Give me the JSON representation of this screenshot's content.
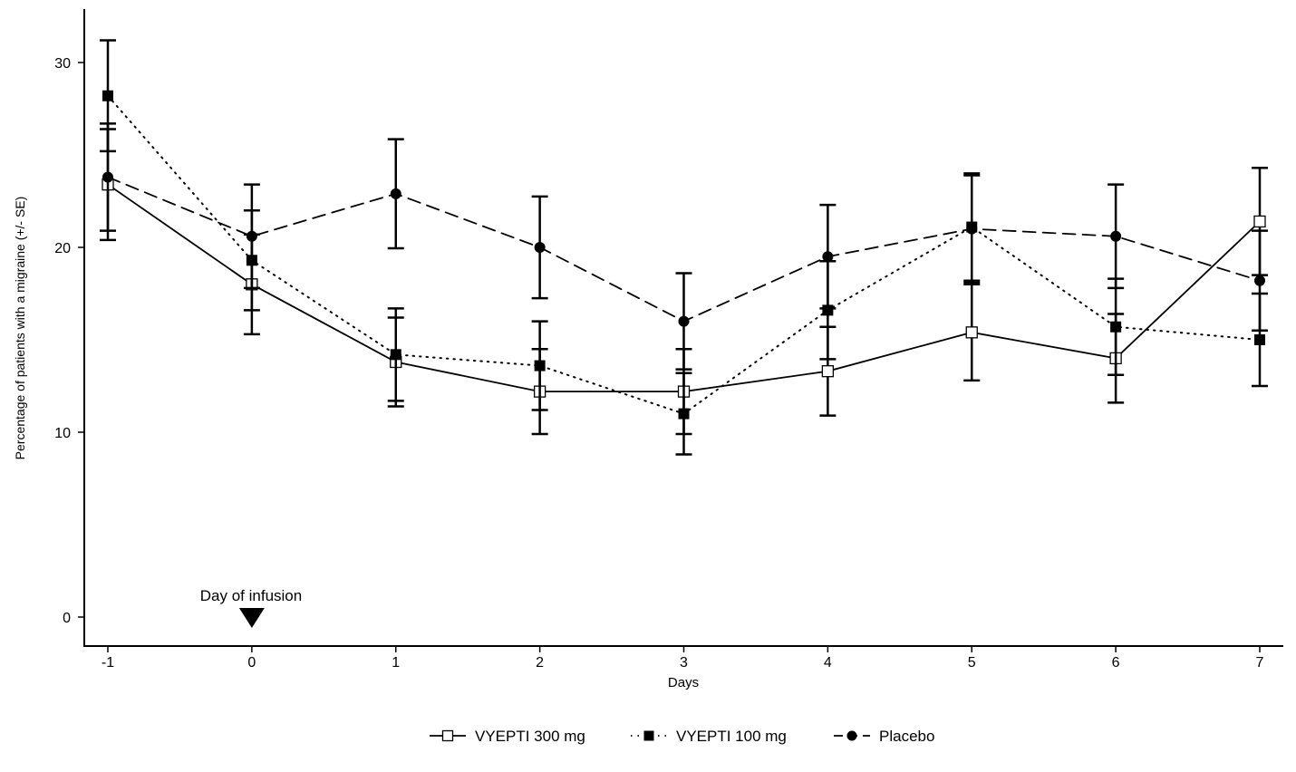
{
  "chart_data": {
    "type": "line",
    "title": "",
    "xlabel": "Days",
    "ylabel": "Percentage of patients with a migraine (+/- SE)",
    "x": [
      -1,
      0,
      1,
      2,
      3,
      4,
      5,
      6,
      7
    ],
    "x_tick_labels": [
      "-1",
      "0",
      "1",
      "2",
      "3",
      "4",
      "5",
      "6",
      "7"
    ],
    "y_ticks": [
      0,
      10,
      20,
      30
    ],
    "y_tick_labels": [
      "0",
      "10",
      "20",
      "30"
    ],
    "xlim": [
      -1.15,
      7.15
    ],
    "ylim": [
      -1.6,
      33
    ],
    "grid": false,
    "legend_position": "bottom",
    "annotation": {
      "text": "Day of infusion",
      "x": 0,
      "marker": "down-triangle"
    },
    "series": [
      {
        "name": "VYEPTI 300 mg",
        "marker": "open-square",
        "line": "solid",
        "values": [
          23.4,
          18.0,
          13.8,
          12.2,
          12.2,
          13.3,
          15.4,
          14.0,
          21.4
        ],
        "se": [
          3.0,
          2.7,
          2.4,
          2.3,
          2.3,
          2.4,
          2.6,
          2.4,
          2.9
        ]
      },
      {
        "name": "VYEPTI 100 mg",
        "marker": "filled-square",
        "line": "dotted",
        "values": [
          28.2,
          19.3,
          14.2,
          13.6,
          11.0,
          16.6,
          21.1,
          15.7,
          15.0
        ],
        "se": [
          3.0,
          2.7,
          2.5,
          2.4,
          2.2,
          2.65,
          2.9,
          2.6,
          2.5
        ]
      },
      {
        "name": "Placebo",
        "marker": "filled-circle",
        "line": "dashed",
        "values": [
          23.8,
          20.6,
          22.9,
          20.0,
          16.0,
          19.5,
          21.0,
          20.6,
          18.2
        ],
        "se": [
          2.9,
          2.8,
          2.95,
          2.75,
          2.6,
          2.8,
          2.9,
          2.8,
          2.7
        ]
      }
    ]
  }
}
